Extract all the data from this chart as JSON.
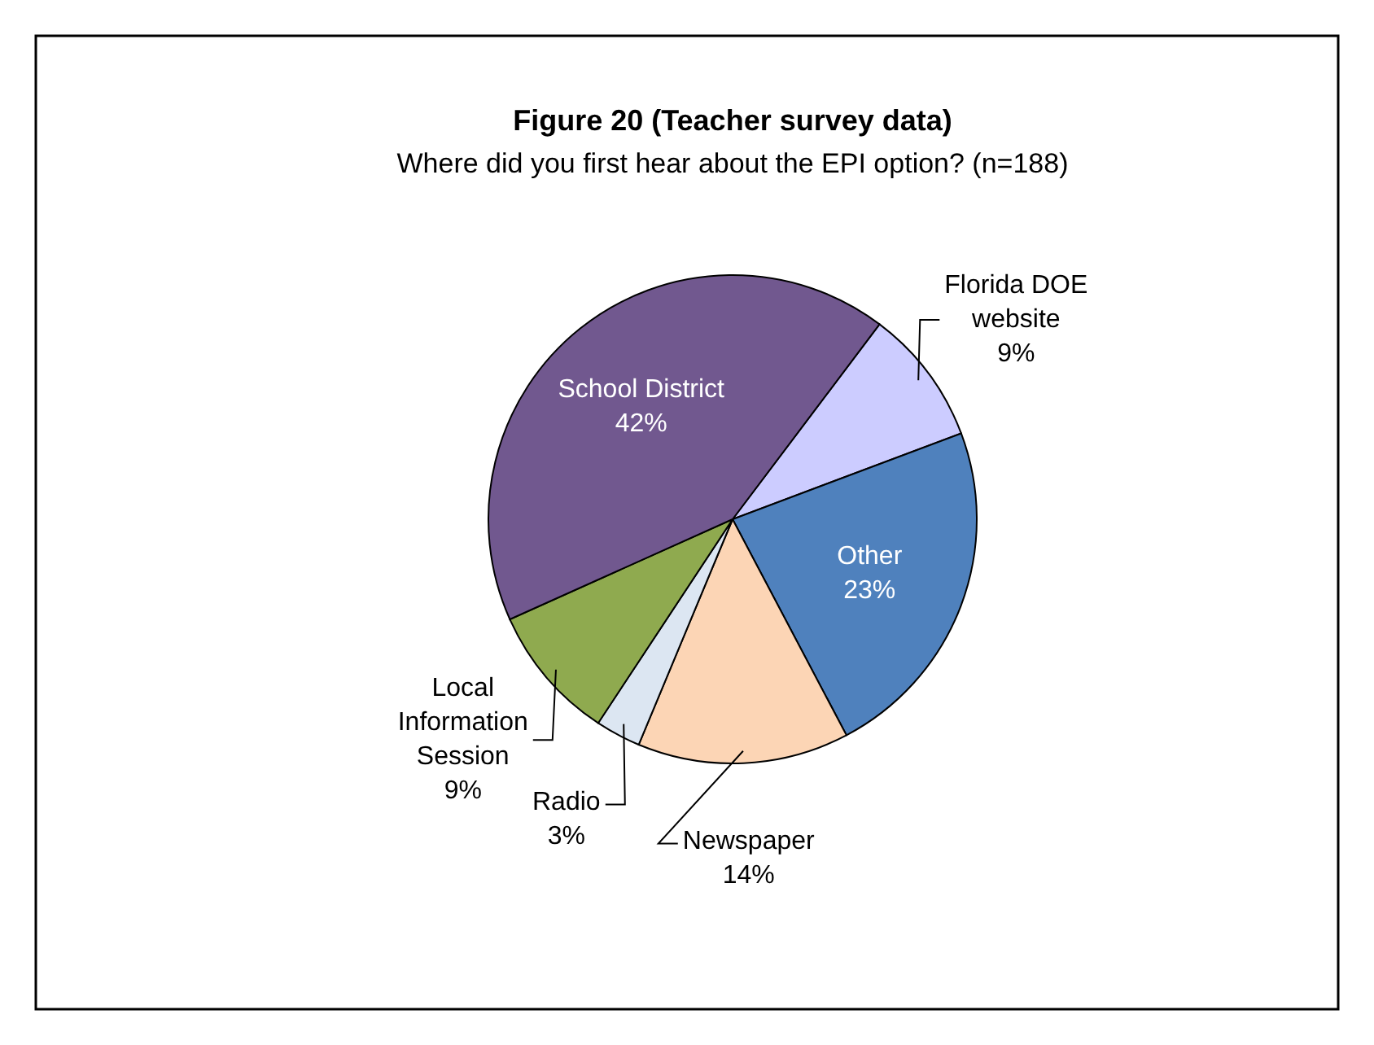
{
  "chart_data": {
    "type": "pie",
    "title": "Figure 20 (Teacher survey data)",
    "subtitle": "Where did you first hear about the EPI option? (n=188)",
    "categories": [
      "Florida DOE website",
      "Other",
      "Newspaper",
      "Radio",
      "Local Information Session",
      "School District"
    ],
    "values": [
      9,
      23,
      14,
      3,
      9,
      42
    ],
    "value_labels": [
      "9%",
      "23%",
      "14%",
      "3%",
      "9%",
      "42%"
    ],
    "colors": [
      "#ccccff",
      "#4f81bd",
      "#fcd5b5",
      "#dce6f2",
      "#8faa4f",
      "#71588f"
    ]
  }
}
